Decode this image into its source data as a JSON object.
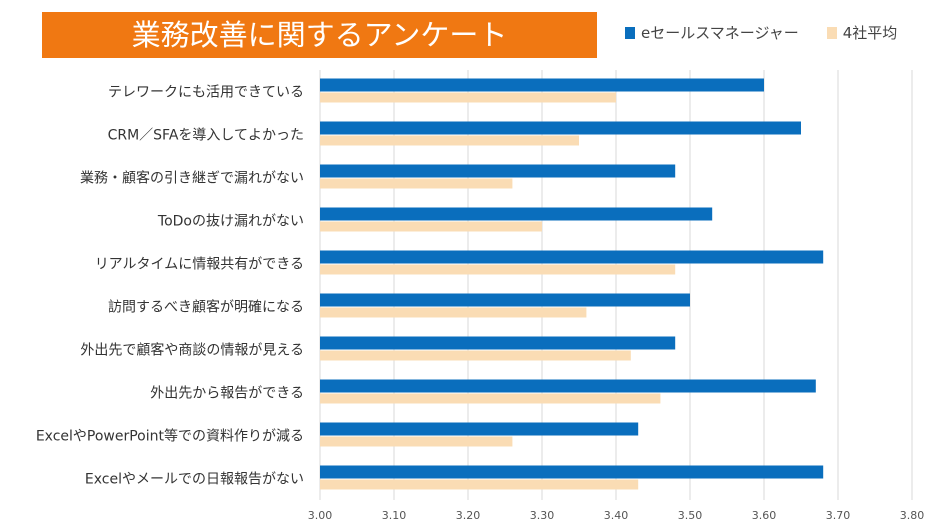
{
  "chart_data": {
    "type": "bar",
    "orientation": "horizontal",
    "title": "業務改善に関するアンケート",
    "categories": [
      "テレワークにも活用できている",
      "CRM／SFAを導入してよかった",
      "業務・顧客の引き継ぎで漏れがない",
      "ToDoの抜け漏れがない",
      "リアルタイムに情報共有ができる",
      "訪問するべき顧客が明確になる",
      "外出先で顧客や商談の情報が見える",
      "外出先から報告ができる",
      "ExcelやPowerPoint等での資料作りが減る",
      "Excelやメールでの日報報告がない"
    ],
    "series": [
      {
        "name": "eセールスマネージャー",
        "color": "#0a6ebd",
        "values": [
          3.6,
          3.65,
          3.48,
          3.53,
          3.68,
          3.5,
          3.48,
          3.67,
          3.43,
          3.68
        ]
      },
      {
        "name": "4社平均",
        "color": "#fadcb4",
        "values": [
          3.4,
          3.35,
          3.26,
          3.3,
          3.48,
          3.36,
          3.42,
          3.46,
          3.26,
          3.43
        ]
      }
    ],
    "xlim": [
      3.0,
      3.8
    ],
    "xticks": [
      "3.00",
      "3.10",
      "3.20",
      "3.30",
      "3.40",
      "3.50",
      "3.60",
      "3.70",
      "3.80"
    ],
    "grid": true,
    "legend": "top-right"
  }
}
